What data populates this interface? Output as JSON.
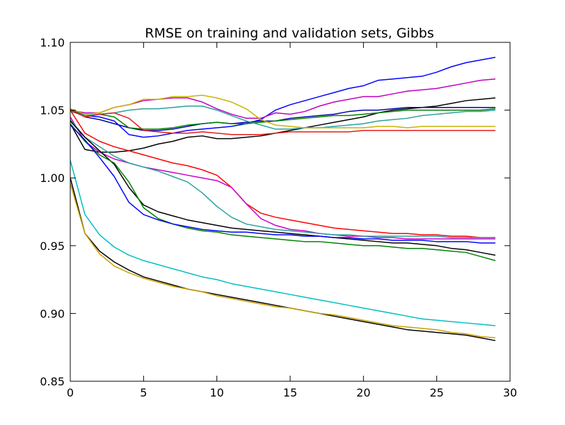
{
  "chart_data": {
    "type": "line",
    "title": "RMSE on training and validation sets, Gibbs",
    "xlabel": "",
    "ylabel": "",
    "xlim": [
      0,
      30
    ],
    "ylim": [
      0.85,
      1.1
    ],
    "x_ticks": [
      0,
      5,
      10,
      15,
      20,
      25,
      30
    ],
    "y_ticks": [
      0.85,
      0.9,
      0.95,
      1.0,
      1.05,
      1.1
    ],
    "x_tick_labels": [
      "0",
      "5",
      "10",
      "15",
      "20",
      "25",
      "30"
    ],
    "y_tick_labels": [
      "0.85",
      "0.90",
      "0.95",
      "1.00",
      "1.05",
      "1.10"
    ],
    "grid": false,
    "legend": "none",
    "x": [
      0,
      1,
      2,
      3,
      4,
      5,
      6,
      7,
      8,
      9,
      10,
      11,
      12,
      13,
      14,
      15,
      16,
      17,
      18,
      19,
      20,
      21,
      22,
      23,
      24,
      25,
      26,
      27,
      28,
      29
    ],
    "series": [
      {
        "color": "#0000ff",
        "values": [
          1.051,
          1.046,
          1.045,
          1.042,
          1.032,
          1.03,
          1.031,
          1.033,
          1.035,
          1.036,
          1.037,
          1.038,
          1.04,
          1.043,
          1.05,
          1.054,
          1.057,
          1.06,
          1.063,
          1.066,
          1.068,
          1.072,
          1.073,
          1.074,
          1.075,
          1.078,
          1.082,
          1.085,
          1.087,
          1.089
        ]
      },
      {
        "color": "#bf00bf",
        "values": [
          1.05,
          1.048,
          1.048,
          1.052,
          1.054,
          1.057,
          1.058,
          1.059,
          1.059,
          1.056,
          1.051,
          1.047,
          1.044,
          1.044,
          1.048,
          1.047,
          1.049,
          1.053,
          1.056,
          1.058,
          1.06,
          1.06,
          1.062,
          1.064,
          1.065,
          1.066,
          1.068,
          1.07,
          1.072,
          1.073
        ]
      },
      {
        "color": "#000000",
        "values": [
          1.04,
          1.021,
          1.019,
          1.019,
          1.02,
          1.022,
          1.025,
          1.027,
          1.03,
          1.031,
          1.029,
          1.029,
          1.03,
          1.031,
          1.033,
          1.035,
          1.037,
          1.039,
          1.041,
          1.043,
          1.045,
          1.048,
          1.05,
          1.051,
          1.052,
          1.053,
          1.055,
          1.057,
          1.058,
          1.059
        ]
      },
      {
        "color": "#0000aa",
        "values": [
          1.051,
          1.045,
          1.043,
          1.04,
          1.037,
          1.035,
          1.035,
          1.036,
          1.038,
          1.04,
          1.041,
          1.04,
          1.041,
          1.042,
          1.042,
          1.044,
          1.045,
          1.046,
          1.047,
          1.049,
          1.05,
          1.05,
          1.051,
          1.052,
          1.052,
          1.052,
          1.052,
          1.052,
          1.052,
          1.052
        ]
      },
      {
        "color": "#008000",
        "values": [
          1.05,
          1.046,
          1.047,
          1.045,
          1.037,
          1.036,
          1.036,
          1.037,
          1.039,
          1.04,
          1.041,
          1.04,
          1.04,
          1.041,
          1.042,
          1.043,
          1.044,
          1.045,
          1.046,
          1.046,
          1.047,
          1.048,
          1.049,
          1.05,
          1.05,
          1.05,
          1.05,
          1.05,
          1.05,
          1.051
        ]
      },
      {
        "color": "#2aa198",
        "values": [
          1.049,
          1.046,
          1.047,
          1.048,
          1.05,
          1.051,
          1.051,
          1.052,
          1.053,
          1.053,
          1.05,
          1.046,
          1.042,
          1.039,
          1.036,
          1.036,
          1.037,
          1.037,
          1.038,
          1.039,
          1.04,
          1.042,
          1.043,
          1.044,
          1.046,
          1.047,
          1.048,
          1.049,
          1.049,
          1.05
        ]
      },
      {
        "color": "#c8b400",
        "values": [
          1.051,
          1.047,
          1.048,
          1.052,
          1.054,
          1.058,
          1.058,
          1.06,
          1.06,
          1.061,
          1.059,
          1.056,
          1.051,
          1.043,
          1.039,
          1.038,
          1.037,
          1.037,
          1.037,
          1.037,
          1.037,
          1.038,
          1.038,
          1.037,
          1.038,
          1.038,
          1.038,
          1.038,
          1.038,
          1.038
        ]
      },
      {
        "color": "#e31a1c",
        "values": [
          1.05,
          1.045,
          1.047,
          1.048,
          1.044,
          1.035,
          1.034,
          1.033,
          1.033,
          1.034,
          1.033,
          1.032,
          1.032,
          1.032,
          1.033,
          1.034,
          1.034,
          1.034,
          1.034,
          1.034,
          1.035,
          1.035,
          1.035,
          1.035,
          1.035,
          1.035,
          1.035,
          1.035,
          1.035,
          1.035
        ]
      },
      {
        "color": "#ff0000",
        "values": [
          1.05,
          1.033,
          1.027,
          1.023,
          1.02,
          1.017,
          1.014,
          1.011,
          1.009,
          1.006,
          1.002,
          0.993,
          0.981,
          0.974,
          0.971,
          0.969,
          0.967,
          0.965,
          0.963,
          0.962,
          0.961,
          0.96,
          0.959,
          0.959,
          0.958,
          0.958,
          0.957,
          0.957,
          0.956,
          0.956
        ]
      },
      {
        "color": "#cc00cc",
        "values": [
          1.045,
          1.027,
          1.019,
          1.014,
          1.011,
          1.008,
          1.006,
          1.004,
          1.002,
          1.0,
          0.998,
          0.993,
          0.981,
          0.97,
          0.965,
          0.962,
          0.961,
          0.959,
          0.958,
          0.957,
          0.957,
          0.956,
          0.956,
          0.955,
          0.955,
          0.955,
          0.955,
          0.955,
          0.955,
          0.955
        ]
      },
      {
        "color": "#2aa198",
        "values": [
          1.043,
          1.03,
          1.023,
          1.016,
          1.011,
          1.008,
          1.005,
          1.001,
          0.997,
          0.989,
          0.979,
          0.971,
          0.966,
          0.964,
          0.962,
          0.961,
          0.96,
          0.959,
          0.958,
          0.958,
          0.957,
          0.957,
          0.957,
          0.957,
          0.957,
          0.957,
          0.956,
          0.956,
          0.956,
          0.956
        ]
      },
      {
        "color": "#000000",
        "values": [
          1.042,
          1.03,
          1.02,
          1.01,
          0.993,
          0.98,
          0.975,
          0.972,
          0.969,
          0.967,
          0.965,
          0.963,
          0.962,
          0.961,
          0.96,
          0.959,
          0.958,
          0.957,
          0.956,
          0.955,
          0.954,
          0.953,
          0.952,
          0.952,
          0.951,
          0.95,
          0.948,
          0.947,
          0.945,
          0.943
        ]
      },
      {
        "color": "#008000",
        "values": [
          1.04,
          1.027,
          1.017,
          1.011,
          0.997,
          0.978,
          0.97,
          0.966,
          0.963,
          0.961,
          0.96,
          0.958,
          0.957,
          0.956,
          0.955,
          0.954,
          0.953,
          0.953,
          0.952,
          0.951,
          0.95,
          0.95,
          0.949,
          0.948,
          0.948,
          0.947,
          0.946,
          0.945,
          0.942,
          0.939
        ]
      },
      {
        "color": "#0000ff",
        "values": [
          1.039,
          1.028,
          1.015,
          1.001,
          0.982,
          0.973,
          0.969,
          0.966,
          0.964,
          0.962,
          0.961,
          0.96,
          0.96,
          0.959,
          0.958,
          0.958,
          0.957,
          0.957,
          0.956,
          0.956,
          0.955,
          0.955,
          0.954,
          0.954,
          0.954,
          0.953,
          0.953,
          0.953,
          0.952,
          0.952
        ]
      },
      {
        "color": "#00bfbf",
        "values": [
          1.013,
          0.973,
          0.958,
          0.949,
          0.943,
          0.939,
          0.936,
          0.933,
          0.93,
          0.927,
          0.925,
          0.922,
          0.92,
          0.918,
          0.916,
          0.914,
          0.912,
          0.91,
          0.908,
          0.906,
          0.904,
          0.902,
          0.9,
          0.898,
          0.896,
          0.895,
          0.894,
          0.893,
          0.892,
          0.891
        ]
      },
      {
        "color": "#000000",
        "values": [
          1.0,
          0.959,
          0.946,
          0.938,
          0.932,
          0.927,
          0.924,
          0.921,
          0.918,
          0.916,
          0.914,
          0.912,
          0.91,
          0.908,
          0.906,
          0.904,
          0.902,
          0.9,
          0.898,
          0.896,
          0.894,
          0.892,
          0.89,
          0.888,
          0.887,
          0.886,
          0.885,
          0.884,
          0.882,
          0.88
        ]
      },
      {
        "color": "#c8a000",
        "values": [
          0.996,
          0.959,
          0.944,
          0.935,
          0.93,
          0.926,
          0.923,
          0.92,
          0.918,
          0.916,
          0.913,
          0.911,
          0.909,
          0.907,
          0.905,
          0.904,
          0.902,
          0.9,
          0.899,
          0.897,
          0.895,
          0.893,
          0.891,
          0.89,
          0.889,
          0.888,
          0.886,
          0.885,
          0.883,
          0.882
        ]
      }
    ]
  }
}
